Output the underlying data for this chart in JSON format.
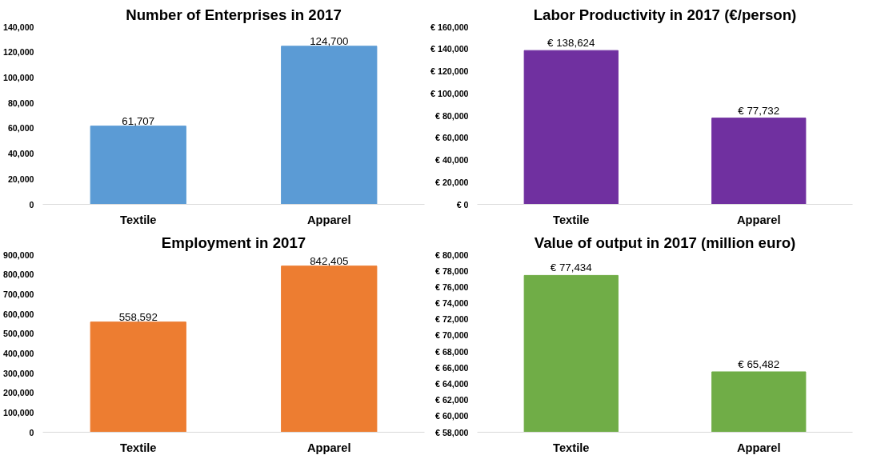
{
  "chart_data": [
    {
      "type": "bar",
      "title": "Number of Enterprises in 2017",
      "categories": [
        "Textile",
        "Apparel"
      ],
      "values": [
        61707,
        124700
      ],
      "value_labels": [
        "61,707",
        "124,700"
      ],
      "color": "#5b9bd5",
      "ylim": [
        0,
        140000
      ],
      "yticks": [
        {
          "value": 0,
          "label": "0"
        },
        {
          "value": 20000,
          "label": "20,000"
        },
        {
          "value": 40000,
          "label": "40,000"
        },
        {
          "value": 60000,
          "label": "60,000"
        },
        {
          "value": 80000,
          "label": "80,000"
        },
        {
          "value": 100000,
          "label": "100,000"
        },
        {
          "value": 120000,
          "label": "120,000"
        },
        {
          "value": 140000,
          "label": "140,000"
        }
      ],
      "grid": false,
      "legend": false
    },
    {
      "type": "bar",
      "title": "Labor Productivity in 2017 (€/person)",
      "categories": [
        "Textile",
        "Apparel"
      ],
      "values": [
        138624,
        77732
      ],
      "value_labels": [
        "€ 138,624",
        "€ 77,732"
      ],
      "color": "#7030a0",
      "ylim": [
        0,
        160000
      ],
      "yticks": [
        {
          "value": 0,
          "label": "€ 0"
        },
        {
          "value": 20000,
          "label": "€ 20,000"
        },
        {
          "value": 40000,
          "label": "€ 40,000"
        },
        {
          "value": 60000,
          "label": "€ 60,000"
        },
        {
          "value": 80000,
          "label": "€ 80,000"
        },
        {
          "value": 100000,
          "label": "€ 100,000"
        },
        {
          "value": 120000,
          "label": "€ 120,000"
        },
        {
          "value": 140000,
          "label": "€ 140,000"
        },
        {
          "value": 160000,
          "label": "€ 160,000"
        }
      ],
      "grid": false,
      "legend": false
    },
    {
      "type": "bar",
      "title": "Employment in 2017",
      "categories": [
        "Textile",
        "Apparel"
      ],
      "values": [
        558592,
        842405
      ],
      "value_labels": [
        "558,592",
        "842,405"
      ],
      "color": "#ed7d31",
      "ylim": [
        0,
        900000
      ],
      "yticks": [
        {
          "value": 0,
          "label": "0"
        },
        {
          "value": 100000,
          "label": "100,000"
        },
        {
          "value": 200000,
          "label": "200,000"
        },
        {
          "value": 300000,
          "label": "300,000"
        },
        {
          "value": 400000,
          "label": "400,000"
        },
        {
          "value": 500000,
          "label": "500,000"
        },
        {
          "value": 600000,
          "label": "600,000"
        },
        {
          "value": 700000,
          "label": "700,000"
        },
        {
          "value": 800000,
          "label": "800,000"
        },
        {
          "value": 900000,
          "label": "900,000"
        }
      ],
      "grid": false,
      "legend": false
    },
    {
      "type": "bar",
      "title": "Value of output in 2017 (million euro)",
      "categories": [
        "Textile",
        "Apparel"
      ],
      "values": [
        77434,
        65482
      ],
      "value_labels": [
        "€ 77,434",
        "€ 65,482"
      ],
      "color": "#70ad47",
      "ylim": [
        58000,
        80000
      ],
      "yticks": [
        {
          "value": 58000,
          "label": "€ 58,000"
        },
        {
          "value": 60000,
          "label": "€ 60,000"
        },
        {
          "value": 62000,
          "label": "€ 62,000"
        },
        {
          "value": 64000,
          "label": "€ 64,000"
        },
        {
          "value": 66000,
          "label": "€ 66,000"
        },
        {
          "value": 68000,
          "label": "€ 68,000"
        },
        {
          "value": 70000,
          "label": "€ 70,000"
        },
        {
          "value": 72000,
          "label": "€ 72,000"
        },
        {
          "value": 74000,
          "label": "€ 74,000"
        },
        {
          "value": 76000,
          "label": "€ 76,000"
        },
        {
          "value": 78000,
          "label": "€ 78,000"
        },
        {
          "value": 80000,
          "label": "€ 80,000"
        }
      ],
      "grid": false,
      "legend": false
    }
  ]
}
